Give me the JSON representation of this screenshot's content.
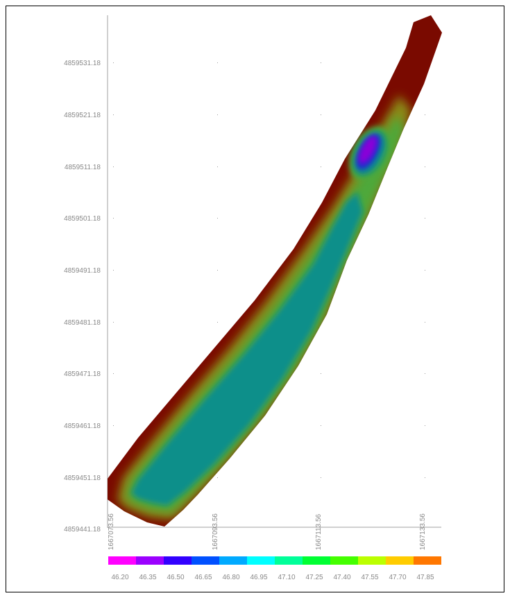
{
  "map": {
    "y_ticks": [
      "4859531.18",
      "4859521.18",
      "4859511.18",
      "4859501.18",
      "4859491.18",
      "4859481.18",
      "4859471.18",
      "4859461.18",
      "4859451.18",
      "4859441.18"
    ],
    "x_ticks": [
      "1667073.56",
      "1667093.56",
      "1667113.56",
      "1667133.56"
    ],
    "legend": {
      "labels": [
        "46.20",
        "46.35",
        "46.50",
        "46.65",
        "46.80",
        "46.95",
        "47.10",
        "47.25",
        "47.40",
        "47.55",
        "47.70",
        "47.85"
      ],
      "colors": [
        "#ff00ff",
        "#9b00ff",
        "#3200ff",
        "#0050ff",
        "#00aaff",
        "#00ffff",
        "#00ff99",
        "#00ff33",
        "#44ff00",
        "#bbff00",
        "#ffcc00",
        "#ff7700"
      ]
    },
    "colors": {
      "body": "#0f8f8a",
      "high": "#7a0a00",
      "mid_red": "#a6260a",
      "mid_olive": "#8c8a14",
      "mid_green": "#4ea83a",
      "low_purple": "#8a00d8",
      "low_blue": "#1a2bd0"
    }
  }
}
